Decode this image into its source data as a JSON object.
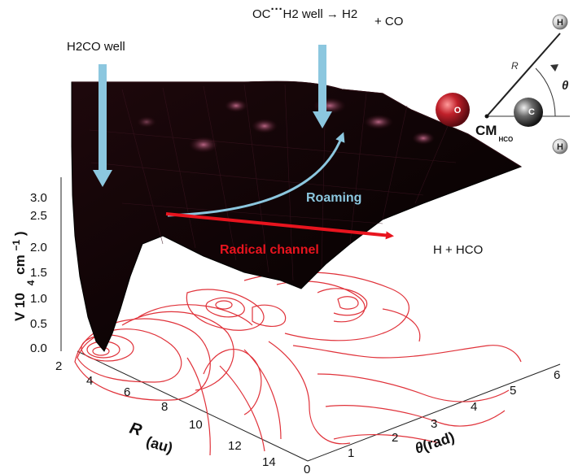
{
  "annotations": {
    "h2co_well": "H2CO well",
    "roaming_top": {
      "prefix": "OC",
      "dots": "···",
      "rest": "H2 well → H2",
      "tail": "+ CO"
    },
    "roaming": "Roaming",
    "radical_channel": "Radical channel",
    "products": "H + HCO"
  },
  "molecule": {
    "atom_O": "O",
    "atom_C": "C",
    "atom_H_top": "H",
    "atom_H_bottom": "H",
    "distance_label": "R",
    "angle_label": "θ",
    "center_label": "CM",
    "center_sub": "HCO"
  },
  "axes": {
    "v_title_main": "V 10",
    "v_title_exp": "4",
    "v_title_unit": "cm",
    "v_title_unit_exp": "−1",
    "v_title_close": ")",
    "v_ticks": [
      "0.0",
      "0.5",
      "1.0",
      "1.5",
      "2.0",
      "2.5",
      "3.0"
    ],
    "r_title_main": "R",
    "r_title_unit": "(au)",
    "r_ticks": [
      "2",
      "4",
      "6",
      "8",
      "10",
      "12",
      "14"
    ],
    "theta_title_main": "θ",
    "theta_title_unit": "(rad)",
    "theta_ticks": [
      "0",
      "1",
      "2",
      "3",
      "4",
      "5",
      "6"
    ]
  },
  "colors": {
    "surface": "#140608",
    "surface_highlight": "#8a3a55",
    "contour": "#e0323a",
    "arrow_blue": "#8cc7df",
    "arrow_red": "#e8141e",
    "atom_O": "#c0202a",
    "atom_C": "#5a5a5a"
  }
}
